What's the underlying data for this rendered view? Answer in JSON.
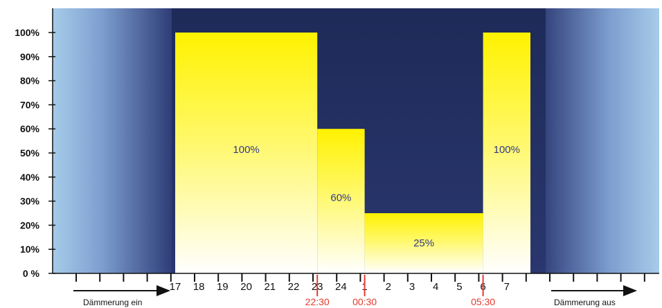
{
  "chart_data": {
    "type": "bar",
    "title": "",
    "xlabel": "",
    "ylabel": "",
    "ylim": [
      0,
      100
    ],
    "y_ticks": [
      "100%",
      "90%",
      "80%",
      "70%",
      "60%",
      "50%",
      "40%",
      "30%",
      "20%",
      "10%",
      "0 %"
    ],
    "x_tick_labels": [
      "17",
      "18",
      "19",
      "20",
      "21",
      "22",
      "23",
      "24",
      "1",
      "2",
      "3",
      "4",
      "5",
      "6",
      "7"
    ],
    "series": [
      {
        "values": [
          {
            "from": "16:30",
            "to": "22:30",
            "value": 100,
            "label": "100%"
          },
          {
            "from": "22:30",
            "to": "00:30",
            "value": 60,
            "label": "60%"
          },
          {
            "from": "00:30",
            "to": "05:30",
            "value": 25,
            "label": "25%"
          },
          {
            "from": "05:30",
            "to": "07:30",
            "value": 100,
            "label": "100%"
          }
        ]
      }
    ],
    "time_markers": [
      "22:30",
      "00:30",
      "05:30"
    ],
    "arrows": [
      {
        "label": "Dämmerung ein",
        "direction": "right",
        "side": "left"
      },
      {
        "label": "Dämmerung aus",
        "direction": "right",
        "side": "right"
      }
    ],
    "colors": {
      "sky_light": "#a7cbe9",
      "sky_mid": "#5a74b4",
      "night": "#1e2a58",
      "bar_top": "#fff200",
      "bar_bottom": "#ffffff",
      "marker": "#e53a2e",
      "bar_label": "#333a80"
    },
    "grid": false
  }
}
